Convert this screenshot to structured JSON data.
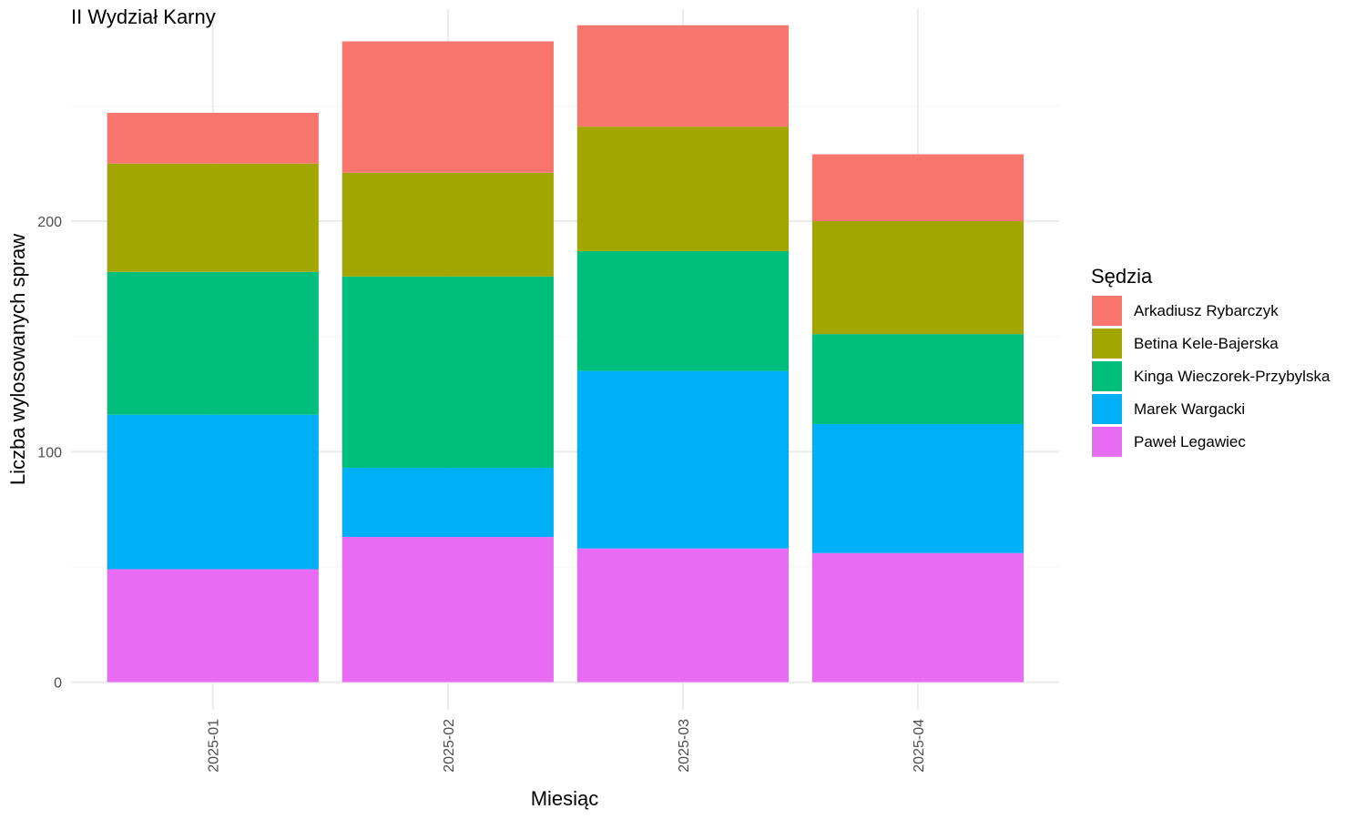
{
  "chart_data": {
    "type": "bar",
    "stacked": true,
    "title": "II Wydział Karny",
    "xlabel": "Miesiąc",
    "ylabel": "Liczba wylosowanych spraw",
    "categories": [
      "2025-01",
      "2025-02",
      "2025-03",
      "2025-04"
    ],
    "ylim": [
      -12,
      292
    ],
    "yticks": [
      0,
      100,
      200
    ],
    "grid": true,
    "legend": {
      "title": "Sędzia",
      "position": "right"
    },
    "series": [
      {
        "name": "Paweł Legawiec",
        "color": "#E76BF3",
        "values": [
          49,
          63,
          58,
          56
        ]
      },
      {
        "name": "Marek Wargacki",
        "color": "#00B0F6",
        "values": [
          67,
          30,
          77,
          56
        ]
      },
      {
        "name": "Kinga Wieczorek-Przybylska",
        "color": "#00BF7D",
        "values": [
          62,
          83,
          52,
          39
        ]
      },
      {
        "name": "Betina Kele-Bajerska",
        "color": "#A3A500",
        "values": [
          47,
          45,
          54,
          49
        ]
      },
      {
        "name": "Arkadiusz Rybarczyk",
        "color": "#F8766D",
        "values": [
          22,
          57,
          44,
          29
        ]
      }
    ],
    "legend_order": [
      "Arkadiusz Rybarczyk",
      "Betina Kele-Bajerska",
      "Kinga Wieczorek-Przybylska",
      "Marek Wargacki",
      "Paweł Legawiec"
    ]
  }
}
